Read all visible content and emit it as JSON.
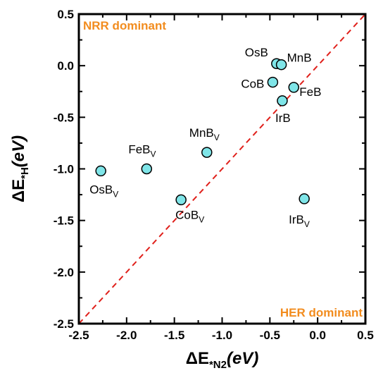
{
  "chart_data": {
    "type": "scatter",
    "title": "",
    "xlabel": {
      "prefix": "ΔE",
      "sub": "*N2",
      "suffix": "(eV)"
    },
    "ylabel": {
      "prefix": "ΔE",
      "sub": "*H",
      "suffix": "(eV)"
    },
    "xlim": [
      -2.5,
      0.5
    ],
    "ylim": [
      -2.5,
      0.5
    ],
    "xticks": [
      "-2.5",
      "-2.0",
      "-1.5",
      "-1.0",
      "-0.5",
      "0.0",
      "0.5"
    ],
    "yticks": [
      "-2.5",
      "-2.0",
      "-1.5",
      "-1.0",
      "-0.5",
      "0.0",
      "0.5"
    ],
    "xtick_values": [
      -2.5,
      -2.0,
      -1.5,
      -1.0,
      -0.5,
      0.0,
      0.5
    ],
    "ytick_values": [
      -2.5,
      -2.0,
      -1.5,
      -1.0,
      -0.5,
      0.0,
      0.5
    ],
    "grid": false,
    "marker_color": "#7fe5e8",
    "diagonal_color": "#e0201b",
    "annotation_color": "#f28c1e",
    "annotations": [
      "NRR dominant",
      "HER dominant"
    ],
    "points": [
      {
        "label": "OsB",
        "sub": "",
        "x": -0.43,
        "y": 0.02
      },
      {
        "label": "MnB",
        "sub": "",
        "x": -0.38,
        "y": 0.01
      },
      {
        "label": "CoB",
        "sub": "",
        "x": -0.47,
        "y": -0.16
      },
      {
        "label": "FeB",
        "sub": "",
        "x": -0.25,
        "y": -0.21
      },
      {
        "label": "IrB",
        "sub": "",
        "x": -0.37,
        "y": -0.34
      },
      {
        "label": "MnB",
        "sub": "V",
        "x": -1.16,
        "y": -0.84
      },
      {
        "label": "FeB",
        "sub": "V",
        "x": -1.79,
        "y": -1.0
      },
      {
        "label": "OsB",
        "sub": "V",
        "x": -2.27,
        "y": -1.02
      },
      {
        "label": "CoB",
        "sub": "V",
        "x": -1.43,
        "y": -1.3
      },
      {
        "label": "IrB",
        "sub": "V",
        "x": -0.14,
        "y": -1.29
      }
    ]
  }
}
